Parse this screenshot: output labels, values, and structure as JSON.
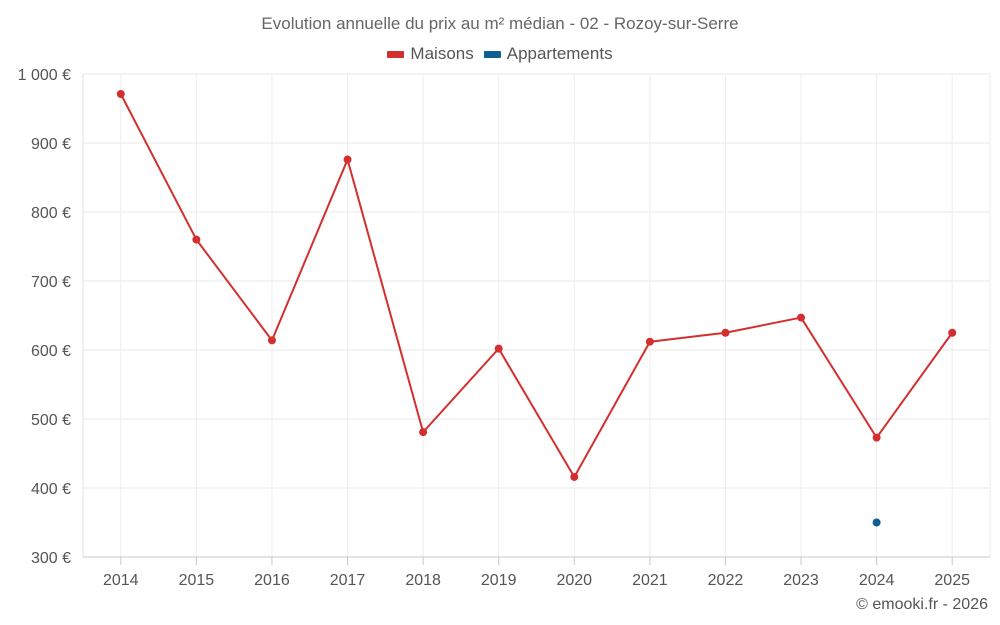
{
  "chart_data": {
    "type": "line",
    "title": "Evolution annuelle du prix au m² médian - 02 - Rozoy-sur-Serre",
    "xlabel": "",
    "ylabel": "",
    "categories": [
      "2014",
      "2015",
      "2016",
      "2017",
      "2018",
      "2019",
      "2020",
      "2021",
      "2022",
      "2023",
      "2024",
      "2025"
    ],
    "ylim": [
      300,
      1000
    ],
    "yticks": [
      300,
      400,
      500,
      600,
      700,
      800,
      900,
      1000
    ],
    "ytick_labels": [
      "300 €",
      "400 €",
      "500 €",
      "600 €",
      "700 €",
      "800 €",
      "900 €",
      "1 000 €"
    ],
    "grid": true,
    "legend_position": "top-center",
    "series": [
      {
        "name": "Maisons",
        "color": "#d32f2f",
        "values": [
          971,
          760,
          614,
          876,
          481,
          602,
          416,
          612,
          625,
          647,
          473,
          625
        ]
      },
      {
        "name": "Appartements",
        "color": "#0d5e91",
        "values": [
          null,
          null,
          null,
          null,
          null,
          null,
          null,
          null,
          null,
          null,
          350,
          null
        ]
      }
    ]
  },
  "footer": {
    "credit": "© emooki.fr - 2026"
  }
}
